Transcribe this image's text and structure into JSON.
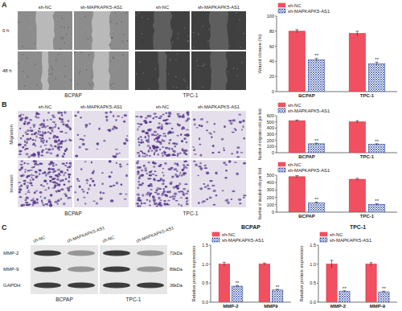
{
  "chart_data": [
    {
      "type": "bar",
      "y_label": "Wound closure (%)",
      "categories": [
        "BCPAP",
        "TPC-1"
      ],
      "series": [
        {
          "name": "sh-NC",
          "color": "#f0505f",
          "values": [
            80,
            77
          ],
          "errors": [
            2,
            3
          ]
        },
        {
          "name": "sh-MAPKAPK5-AS1",
          "color": "#2f4aa0",
          "values": [
            42,
            37
          ],
          "errors": [
            2,
            2
          ],
          "significance": [
            "**",
            "**"
          ]
        }
      ],
      "ylim": [
        0,
        100
      ],
      "yticks": [
        0,
        20,
        40,
        60,
        80,
        100
      ],
      "grid": false,
      "legend": "top-left"
    },
    {
      "type": "bar",
      "y_label": "Number of migrated cells per field",
      "categories": [
        "BCPAP",
        "TPC-1"
      ],
      "series": [
        {
          "name": "sh-NC",
          "color": "#f0505f",
          "values": [
            520,
            500
          ],
          "errors": [
            10,
            20
          ]
        },
        {
          "name": "sh-MAPKAPK5-AS1",
          "color": "#2f4aa0",
          "values": [
            145,
            135
          ],
          "errors": [
            10,
            10
          ],
          "significance": [
            "**",
            "**"
          ]
        }
      ],
      "ylim": [
        0,
        600
      ],
      "yticks": [
        0,
        100,
        200,
        300,
        400,
        500,
        600
      ],
      "grid": false,
      "legend": "top-left"
    },
    {
      "type": "bar",
      "y_label": "Number of invaded cells per field",
      "categories": [
        "BCPAP",
        "TPC-1"
      ],
      "series": [
        {
          "name": "sh-NC",
          "color": "#f0505f",
          "values": [
            480,
            445
          ],
          "errors": [
            15,
            12
          ]
        },
        {
          "name": "sh-MAPKAPK5-AS1",
          "color": "#2f4aa0",
          "values": [
            125,
            105
          ],
          "errors": [
            12,
            10
          ],
          "significance": [
            "**",
            "**"
          ]
        }
      ],
      "ylim": [
        0,
        500
      ],
      "yticks": [
        0,
        100,
        200,
        300,
        400,
        500
      ],
      "grid": false,
      "legend": "top-left"
    },
    {
      "type": "bar",
      "title": "BCPAP",
      "y_label": "Relative protein expression",
      "categories": [
        "MMP-2",
        "MMP9"
      ],
      "series": [
        {
          "name": "sh-NC",
          "color": "#f0505f",
          "values": [
            1.0,
            1.0
          ],
          "errors": [
            0.05,
            0.03
          ]
        },
        {
          "name": "sh-MAPKAPK5-AS1",
          "color": "#2f4aa0",
          "values": [
            0.42,
            0.32
          ],
          "errors": [
            0.02,
            0.02
          ],
          "significance": [
            "**",
            "**"
          ]
        }
      ],
      "ylim": [
        0,
        1.5
      ],
      "yticks": [
        {
          "value": 0,
          "label": "0.0"
        },
        0.5,
        {
          "value": 1,
          "label": "1.0"
        },
        1.5
      ],
      "grid": false,
      "legend": "top-left"
    },
    {
      "type": "bar",
      "title": "TPC-1",
      "y_label": "Relative protein expression",
      "categories": [
        "MMP-2",
        "MMP-9"
      ],
      "series": [
        {
          "name": "sh-NC",
          "color": "#f0505f",
          "values": [
            1.0,
            1.0
          ],
          "errors": [
            0.1,
            0.04
          ]
        },
        {
          "name": "sh-MAPKAPK5-AS1",
          "color": "#2f4aa0",
          "values": [
            0.28,
            0.27
          ],
          "errors": [
            0.02,
            0.02
          ],
          "significance": [
            "**",
            "**"
          ]
        }
      ],
      "ylim": [
        0,
        1.5
      ],
      "yticks": [
        {
          "value": 0,
          "label": "0.0"
        },
        0.5,
        {
          "value": 1,
          "label": "1.0"
        },
        1.5
      ],
      "grid": false,
      "legend": "top-left"
    }
  ],
  "figure": {
    "panel_labels": [
      "A",
      "B",
      "C"
    ],
    "panel_a": {
      "column_labels": [
        "sh-NC",
        "sh-MAPKAPK5-AS1",
        "sh-NC",
        "sh-MAPKAPK5-AS1"
      ],
      "row_labels": [
        "0 h",
        "48 h"
      ],
      "group_labels": [
        "BCPAP",
        "TPC-1"
      ]
    },
    "panel_b": {
      "column_labels": [
        "sh-NC",
        "sh-MAPKAPK5-AS1",
        "sh-NC",
        "sh-MAPKAPK5-AS1"
      ],
      "row_labels": [
        "Migration",
        "Invasion"
      ],
      "group_labels": [
        "BCPAP",
        "TPC-1"
      ]
    },
    "panel_c": {
      "lane_labels": [
        "sh-NC",
        "sh-MAPKAPK5-AS1",
        "sh-NC",
        "sh-MAPKAPK5-AS1"
      ],
      "band_labels": [
        "MMP-2",
        "MMP-9",
        "GAPDH"
      ],
      "band_sizes": [
        "72kDa",
        "89kDa",
        "36kDa"
      ],
      "group_labels": [
        "BCPAP",
        "TPC-1"
      ]
    }
  }
}
